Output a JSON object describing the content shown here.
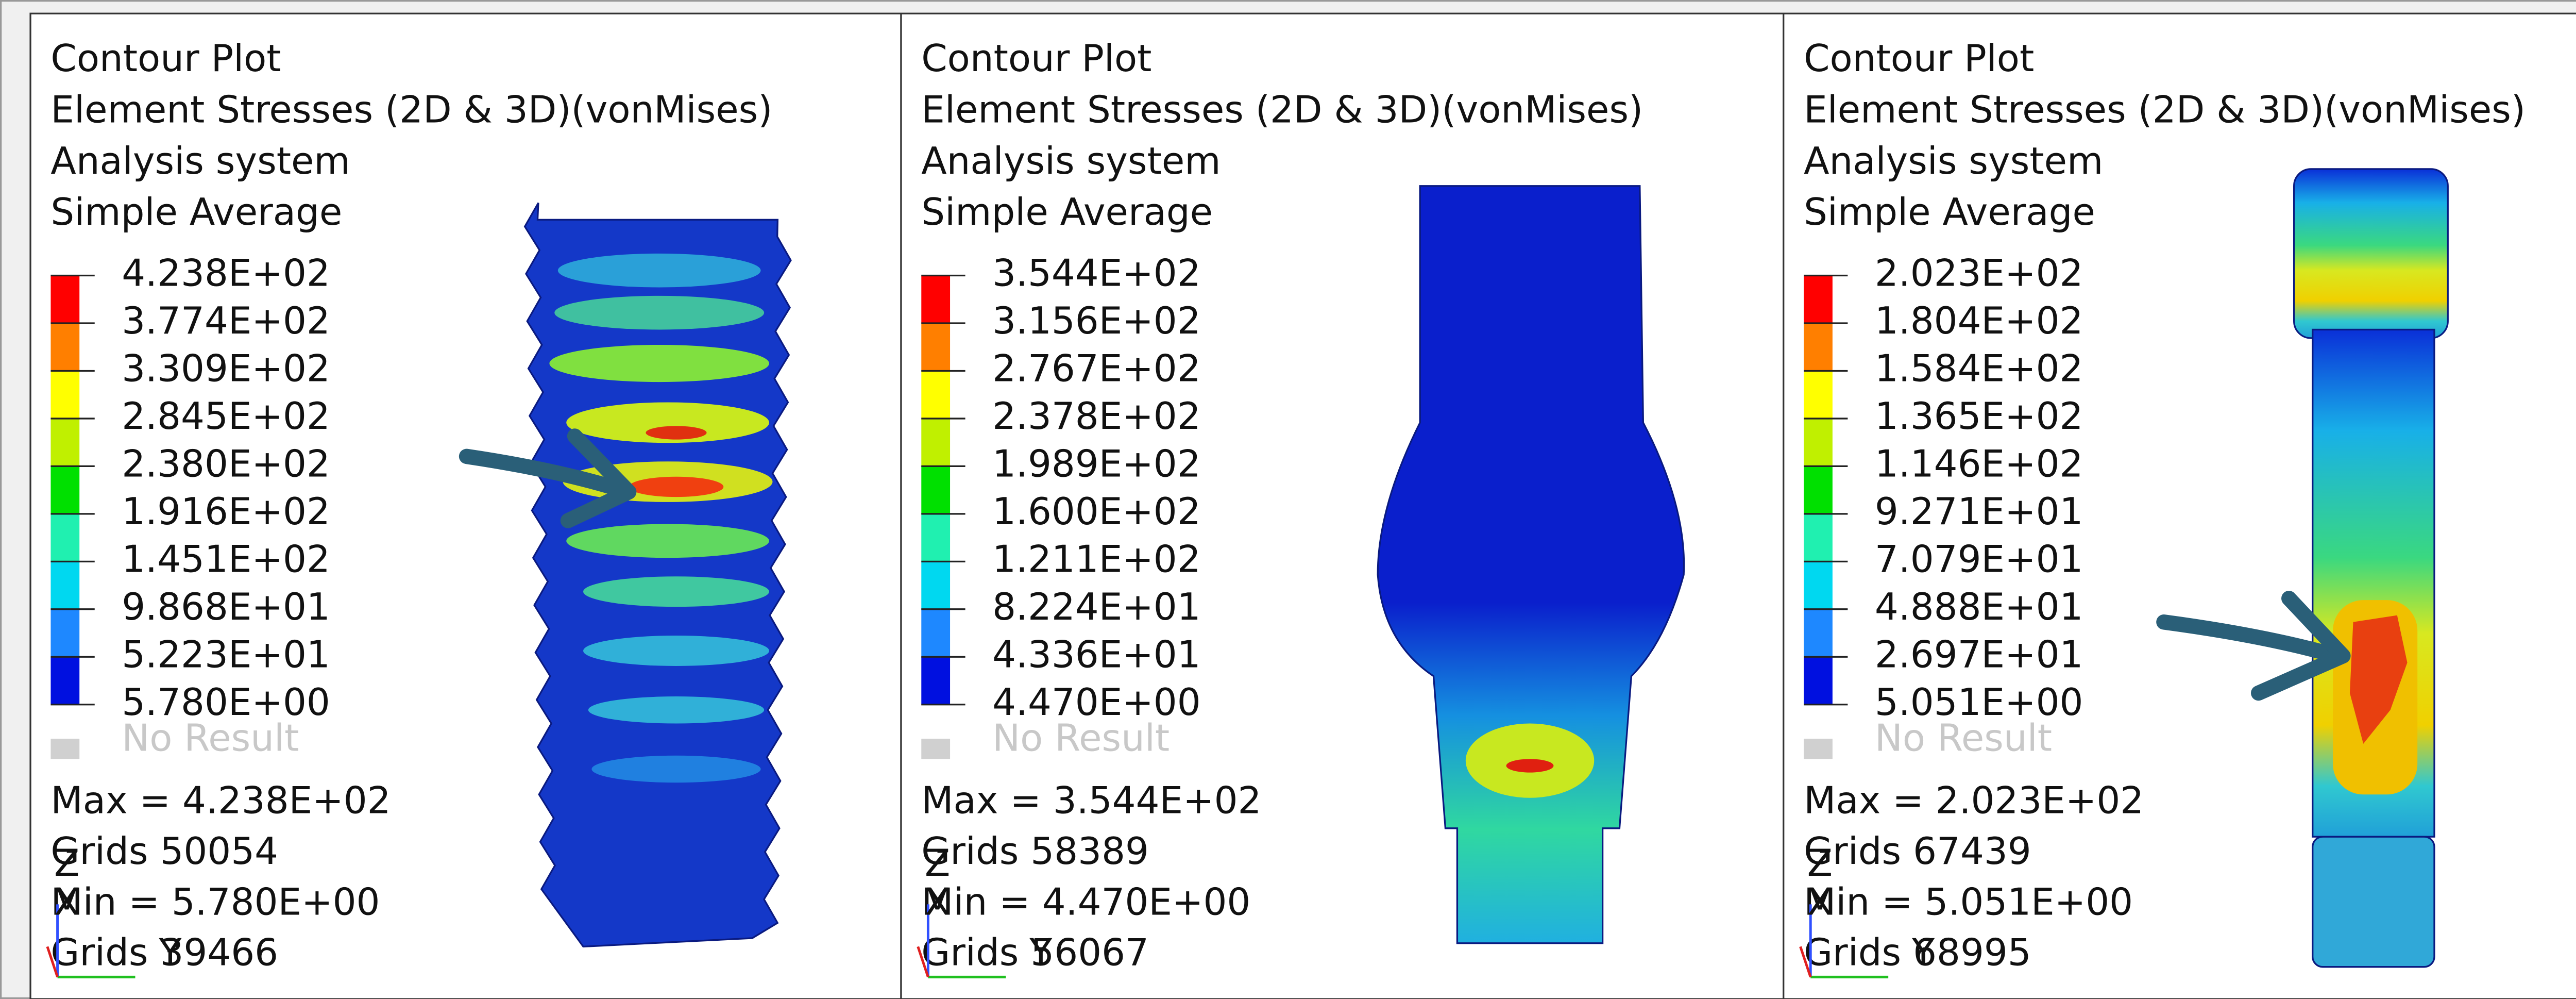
{
  "panels": [
    {
      "header": [
        "Contour Plot",
        "Element Stresses (2D & 3D)(vonMises)",
        "Analysis system",
        "Simple Average"
      ],
      "legend": [
        "4.238E+02",
        "3.774E+02",
        "3.309E+02",
        "2.845E+02",
        "2.380E+02",
        "1.916E+02",
        "1.451E+02",
        "9.868E+01",
        "5.223E+01",
        "5.780E+00"
      ],
      "no_result": "No Result",
      "max": "Max =  4.238E+02",
      "max_grids": "Grids 50054",
      "min": "Min =  5.780E+00",
      "min_grids": "Grids 39466",
      "triad": [
        "Z",
        "X",
        "Y"
      ]
    },
    {
      "header": [
        "Contour Plot",
        "Element Stresses (2D & 3D)(vonMises)",
        "Analysis system",
        "Simple Average"
      ],
      "legend": [
        "3.544E+02",
        "3.156E+02",
        "2.767E+02",
        "2.378E+02",
        "1.989E+02",
        "1.600E+02",
        "1.211E+02",
        "8.224E+01",
        "4.336E+01",
        "4.470E+00"
      ],
      "no_result": "No Result",
      "max": "Max =  3.544E+02",
      "max_grids": "Grids 58389",
      "min": "Min =  4.470E+00",
      "min_grids": "Grids 56067",
      "triad": [
        "Z",
        "X",
        "Y"
      ]
    },
    {
      "header": [
        "Contour Plot",
        "Element Stresses (2D & 3D)(vonMises)",
        "Analysis system",
        "Simple Average"
      ],
      "legend": [
        "2.023E+02",
        "1.804E+02",
        "1.584E+02",
        "1.365E+02",
        "1.146E+02",
        "9.271E+01",
        "7.079E+01",
        "4.888E+01",
        "2.697E+01",
        "5.051E+00"
      ],
      "no_result": "No Result",
      "max": "Max =  2.023E+02",
      "max_grids": "Grids 67439",
      "min": "Min =  5.051E+00",
      "min_grids": "Grids 68995",
      "triad": [
        "Z",
        "X",
        "Y"
      ]
    }
  ]
}
